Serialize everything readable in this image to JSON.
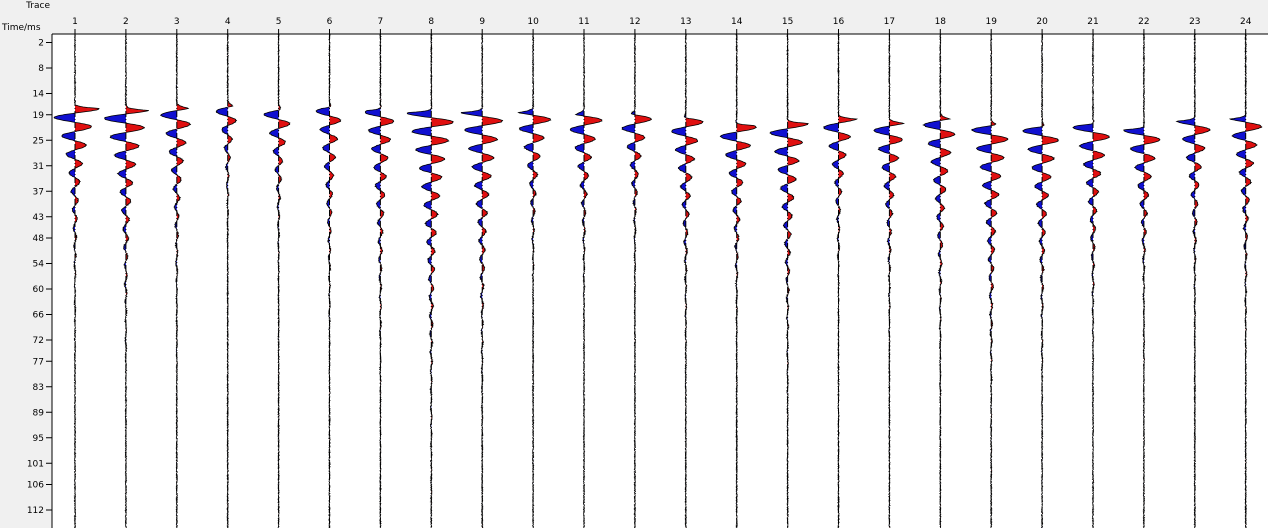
{
  "axis": {
    "trace_label": "Trace",
    "time_label": "Time/ms"
  },
  "chart_data": {
    "type": "seismic-wiggle",
    "x_name": "Trace",
    "y_name": "Time/ms",
    "traces": [
      "1",
      "2",
      "3",
      "4",
      "5",
      "6",
      "7",
      "8",
      "9",
      "10",
      "11",
      "12",
      "13",
      "14",
      "15",
      "16",
      "17",
      "18",
      "19",
      "20",
      "21",
      "22",
      "23",
      "24"
    ],
    "time_ticks": [
      "2",
      "8",
      "14",
      "19",
      "25",
      "31",
      "37",
      "43",
      "48",
      "54",
      "60",
      "66",
      "72",
      "77",
      "83",
      "89",
      "95",
      "101",
      "106",
      "112"
    ],
    "ylim": [
      0,
      113
    ],
    "y_inverted": true,
    "fill_positive_color": "#e01010",
    "fill_negative_color": "#1010d0",
    "first_arrival_ms": [
      17.5,
      18,
      17.5,
      17,
      18,
      17.5,
      18,
      18.5,
      18.5,
      18.5,
      19,
      19,
      20,
      21.5,
      21,
      20,
      21,
      20,
      21.5,
      22,
      21.5,
      22.5,
      20.5,
      20
    ],
    "peak_amplitude": [
      0.55,
      0.55,
      0.4,
      0.3,
      0.35,
      0.3,
      0.35,
      0.55,
      0.5,
      0.45,
      0.45,
      0.4,
      0.4,
      0.45,
      0.45,
      0.4,
      0.4,
      0.4,
      0.45,
      0.45,
      0.45,
      0.45,
      0.4,
      0.4
    ],
    "tail_ms": [
      30,
      37,
      33,
      20,
      25,
      37,
      43,
      50,
      44,
      27,
      27,
      25,
      35,
      32,
      41,
      27,
      33,
      40,
      45,
      38,
      33,
      30,
      30,
      34
    ]
  }
}
